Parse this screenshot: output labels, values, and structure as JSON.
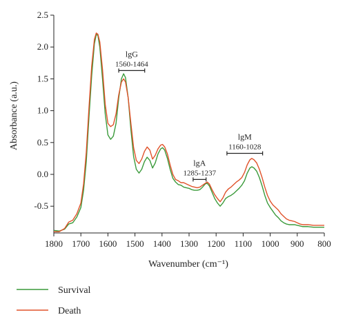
{
  "chart_data": {
    "type": "line",
    "xlabel": "Wavenumber (cm⁻¹)",
    "ylabel": "Absorbance (a.u.)",
    "xlim": [
      1800,
      800
    ],
    "ylim": [
      -0.92,
      2.5
    ],
    "x_reversed": true,
    "x_ticks": [
      1800,
      1700,
      1600,
      1500,
      1400,
      1300,
      1200,
      1100,
      1000,
      900,
      800
    ],
    "y_ticks": [
      -0.5,
      0.0,
      0.5,
      1.0,
      1.5,
      2.0,
      2.5
    ],
    "y_tick_labels": [
      "-0.5",
      "0.0",
      "0.5",
      "1.0",
      "1.5",
      "2.0",
      "2.5"
    ],
    "grid": false,
    "legend": "bottom-left",
    "series": [
      {
        "name": "Survival",
        "color": "#3a9a3a",
        "points": [
          [
            1800,
            -0.88
          ],
          [
            1780,
            -0.89
          ],
          [
            1760,
            -0.86
          ],
          [
            1745,
            -0.78
          ],
          [
            1730,
            -0.76
          ],
          [
            1715,
            -0.67
          ],
          [
            1700,
            -0.52
          ],
          [
            1690,
            -0.25
          ],
          [
            1680,
            0.2
          ],
          [
            1670,
            0.9
          ],
          [
            1660,
            1.55
          ],
          [
            1650,
            2.05
          ],
          [
            1643,
            2.2
          ],
          [
            1637,
            2.18
          ],
          [
            1630,
            2.0
          ],
          [
            1620,
            1.5
          ],
          [
            1610,
            0.95
          ],
          [
            1600,
            0.62
          ],
          [
            1590,
            0.55
          ],
          [
            1580,
            0.6
          ],
          [
            1570,
            0.8
          ],
          [
            1560,
            1.2
          ],
          [
            1550,
            1.5
          ],
          [
            1542,
            1.58
          ],
          [
            1535,
            1.52
          ],
          [
            1525,
            1.2
          ],
          [
            1515,
            0.7
          ],
          [
            1505,
            0.28
          ],
          [
            1495,
            0.08
          ],
          [
            1485,
            0.02
          ],
          [
            1475,
            0.08
          ],
          [
            1465,
            0.2
          ],
          [
            1455,
            0.27
          ],
          [
            1445,
            0.22
          ],
          [
            1435,
            0.1
          ],
          [
            1425,
            0.18
          ],
          [
            1415,
            0.32
          ],
          [
            1405,
            0.4
          ],
          [
            1398,
            0.42
          ],
          [
            1390,
            0.38
          ],
          [
            1380,
            0.25
          ],
          [
            1370,
            0.08
          ],
          [
            1360,
            -0.06
          ],
          [
            1350,
            -0.12
          ],
          [
            1340,
            -0.16
          ],
          [
            1330,
            -0.17
          ],
          [
            1320,
            -0.2
          ],
          [
            1310,
            -0.21
          ],
          [
            1300,
            -0.22
          ],
          [
            1290,
            -0.24
          ],
          [
            1280,
            -0.25
          ],
          [
            1270,
            -0.25
          ],
          [
            1260,
            -0.24
          ],
          [
            1250,
            -0.2
          ],
          [
            1240,
            -0.15
          ],
          [
            1233,
            -0.14
          ],
          [
            1225,
            -0.18
          ],
          [
            1215,
            -0.28
          ],
          [
            1205,
            -0.38
          ],
          [
            1195,
            -0.45
          ],
          [
            1185,
            -0.5
          ],
          [
            1175,
            -0.45
          ],
          [
            1165,
            -0.38
          ],
          [
            1155,
            -0.35
          ],
          [
            1145,
            -0.33
          ],
          [
            1135,
            -0.3
          ],
          [
            1125,
            -0.26
          ],
          [
            1115,
            -0.22
          ],
          [
            1105,
            -0.17
          ],
          [
            1095,
            -0.1
          ],
          [
            1085,
            0.02
          ],
          [
            1075,
            0.1
          ],
          [
            1068,
            0.12
          ],
          [
            1060,
            0.1
          ],
          [
            1050,
            0.05
          ],
          [
            1040,
            -0.05
          ],
          [
            1030,
            -0.18
          ],
          [
            1020,
            -0.33
          ],
          [
            1010,
            -0.45
          ],
          [
            1000,
            -0.52
          ],
          [
            990,
            -0.58
          ],
          [
            980,
            -0.64
          ],
          [
            970,
            -0.68
          ],
          [
            960,
            -0.73
          ],
          [
            950,
            -0.76
          ],
          [
            940,
            -0.78
          ],
          [
            930,
            -0.79
          ],
          [
            920,
            -0.79
          ],
          [
            910,
            -0.79
          ],
          [
            900,
            -0.8
          ],
          [
            890,
            -0.81
          ],
          [
            880,
            -0.82
          ],
          [
            860,
            -0.82
          ],
          [
            840,
            -0.83
          ],
          [
            820,
            -0.83
          ],
          [
            800,
            -0.83
          ]
        ]
      },
      {
        "name": "Death",
        "color": "#e0522a",
        "points": [
          [
            1800,
            -0.9
          ],
          [
            1780,
            -0.9
          ],
          [
            1760,
            -0.85
          ],
          [
            1745,
            -0.75
          ],
          [
            1730,
            -0.72
          ],
          [
            1715,
            -0.62
          ],
          [
            1700,
            -0.45
          ],
          [
            1690,
            -0.15
          ],
          [
            1680,
            0.35
          ],
          [
            1670,
            1.05
          ],
          [
            1660,
            1.7
          ],
          [
            1650,
            2.12
          ],
          [
            1643,
            2.22
          ],
          [
            1637,
            2.2
          ],
          [
            1630,
            2.08
          ],
          [
            1620,
            1.65
          ],
          [
            1610,
            1.1
          ],
          [
            1600,
            0.8
          ],
          [
            1590,
            0.75
          ],
          [
            1580,
            0.78
          ],
          [
            1570,
            0.95
          ],
          [
            1560,
            1.25
          ],
          [
            1550,
            1.45
          ],
          [
            1542,
            1.5
          ],
          [
            1535,
            1.45
          ],
          [
            1525,
            1.2
          ],
          [
            1515,
            0.8
          ],
          [
            1505,
            0.42
          ],
          [
            1495,
            0.22
          ],
          [
            1485,
            0.17
          ],
          [
            1475,
            0.24
          ],
          [
            1465,
            0.36
          ],
          [
            1455,
            0.43
          ],
          [
            1445,
            0.38
          ],
          [
            1435,
            0.24
          ],
          [
            1425,
            0.3
          ],
          [
            1415,
            0.4
          ],
          [
            1405,
            0.46
          ],
          [
            1398,
            0.47
          ],
          [
            1390,
            0.43
          ],
          [
            1380,
            0.32
          ],
          [
            1370,
            0.15
          ],
          [
            1360,
            0.0
          ],
          [
            1350,
            -0.08
          ],
          [
            1340,
            -0.1
          ],
          [
            1330,
            -0.13
          ],
          [
            1320,
            -0.13
          ],
          [
            1310,
            -0.15
          ],
          [
            1300,
            -0.17
          ],
          [
            1290,
            -0.19
          ],
          [
            1280,
            -0.2
          ],
          [
            1270,
            -0.21
          ],
          [
            1260,
            -0.2
          ],
          [
            1250,
            -0.17
          ],
          [
            1240,
            -0.14
          ],
          [
            1233,
            -0.12
          ],
          [
            1225,
            -0.15
          ],
          [
            1215,
            -0.24
          ],
          [
            1205,
            -0.32
          ],
          [
            1195,
            -0.38
          ],
          [
            1185,
            -0.43
          ],
          [
            1175,
            -0.37
          ],
          [
            1165,
            -0.28
          ],
          [
            1155,
            -0.23
          ],
          [
            1145,
            -0.2
          ],
          [
            1135,
            -0.16
          ],
          [
            1125,
            -0.12
          ],
          [
            1115,
            -0.09
          ],
          [
            1105,
            -0.05
          ],
          [
            1095,
            0.03
          ],
          [
            1085,
            0.15
          ],
          [
            1075,
            0.23
          ],
          [
            1068,
            0.25
          ],
          [
            1060,
            0.23
          ],
          [
            1050,
            0.18
          ],
          [
            1040,
            0.08
          ],
          [
            1030,
            -0.05
          ],
          [
            1020,
            -0.2
          ],
          [
            1010,
            -0.33
          ],
          [
            1000,
            -0.42
          ],
          [
            990,
            -0.48
          ],
          [
            980,
            -0.52
          ],
          [
            970,
            -0.56
          ],
          [
            960,
            -0.62
          ],
          [
            950,
            -0.66
          ],
          [
            940,
            -0.7
          ],
          [
            930,
            -0.72
          ],
          [
            920,
            -0.73
          ],
          [
            910,
            -0.74
          ],
          [
            900,
            -0.76
          ],
          [
            890,
            -0.78
          ],
          [
            880,
            -0.79
          ],
          [
            860,
            -0.79
          ],
          [
            840,
            -0.8
          ],
          [
            820,
            -0.8
          ],
          [
            800,
            -0.8
          ]
        ]
      }
    ],
    "annotations": [
      {
        "label": "lgG",
        "range": "1560-1464",
        "x_from": 1560,
        "x_to": 1464,
        "y": 1.63
      },
      {
        "label": "lgA",
        "range": "1285-1237",
        "x_from": 1285,
        "x_to": 1237,
        "y": -0.08
      },
      {
        "label": "lgM",
        "range": "1160-1028",
        "x_from": 1160,
        "x_to": 1028,
        "y": 0.33
      }
    ]
  }
}
